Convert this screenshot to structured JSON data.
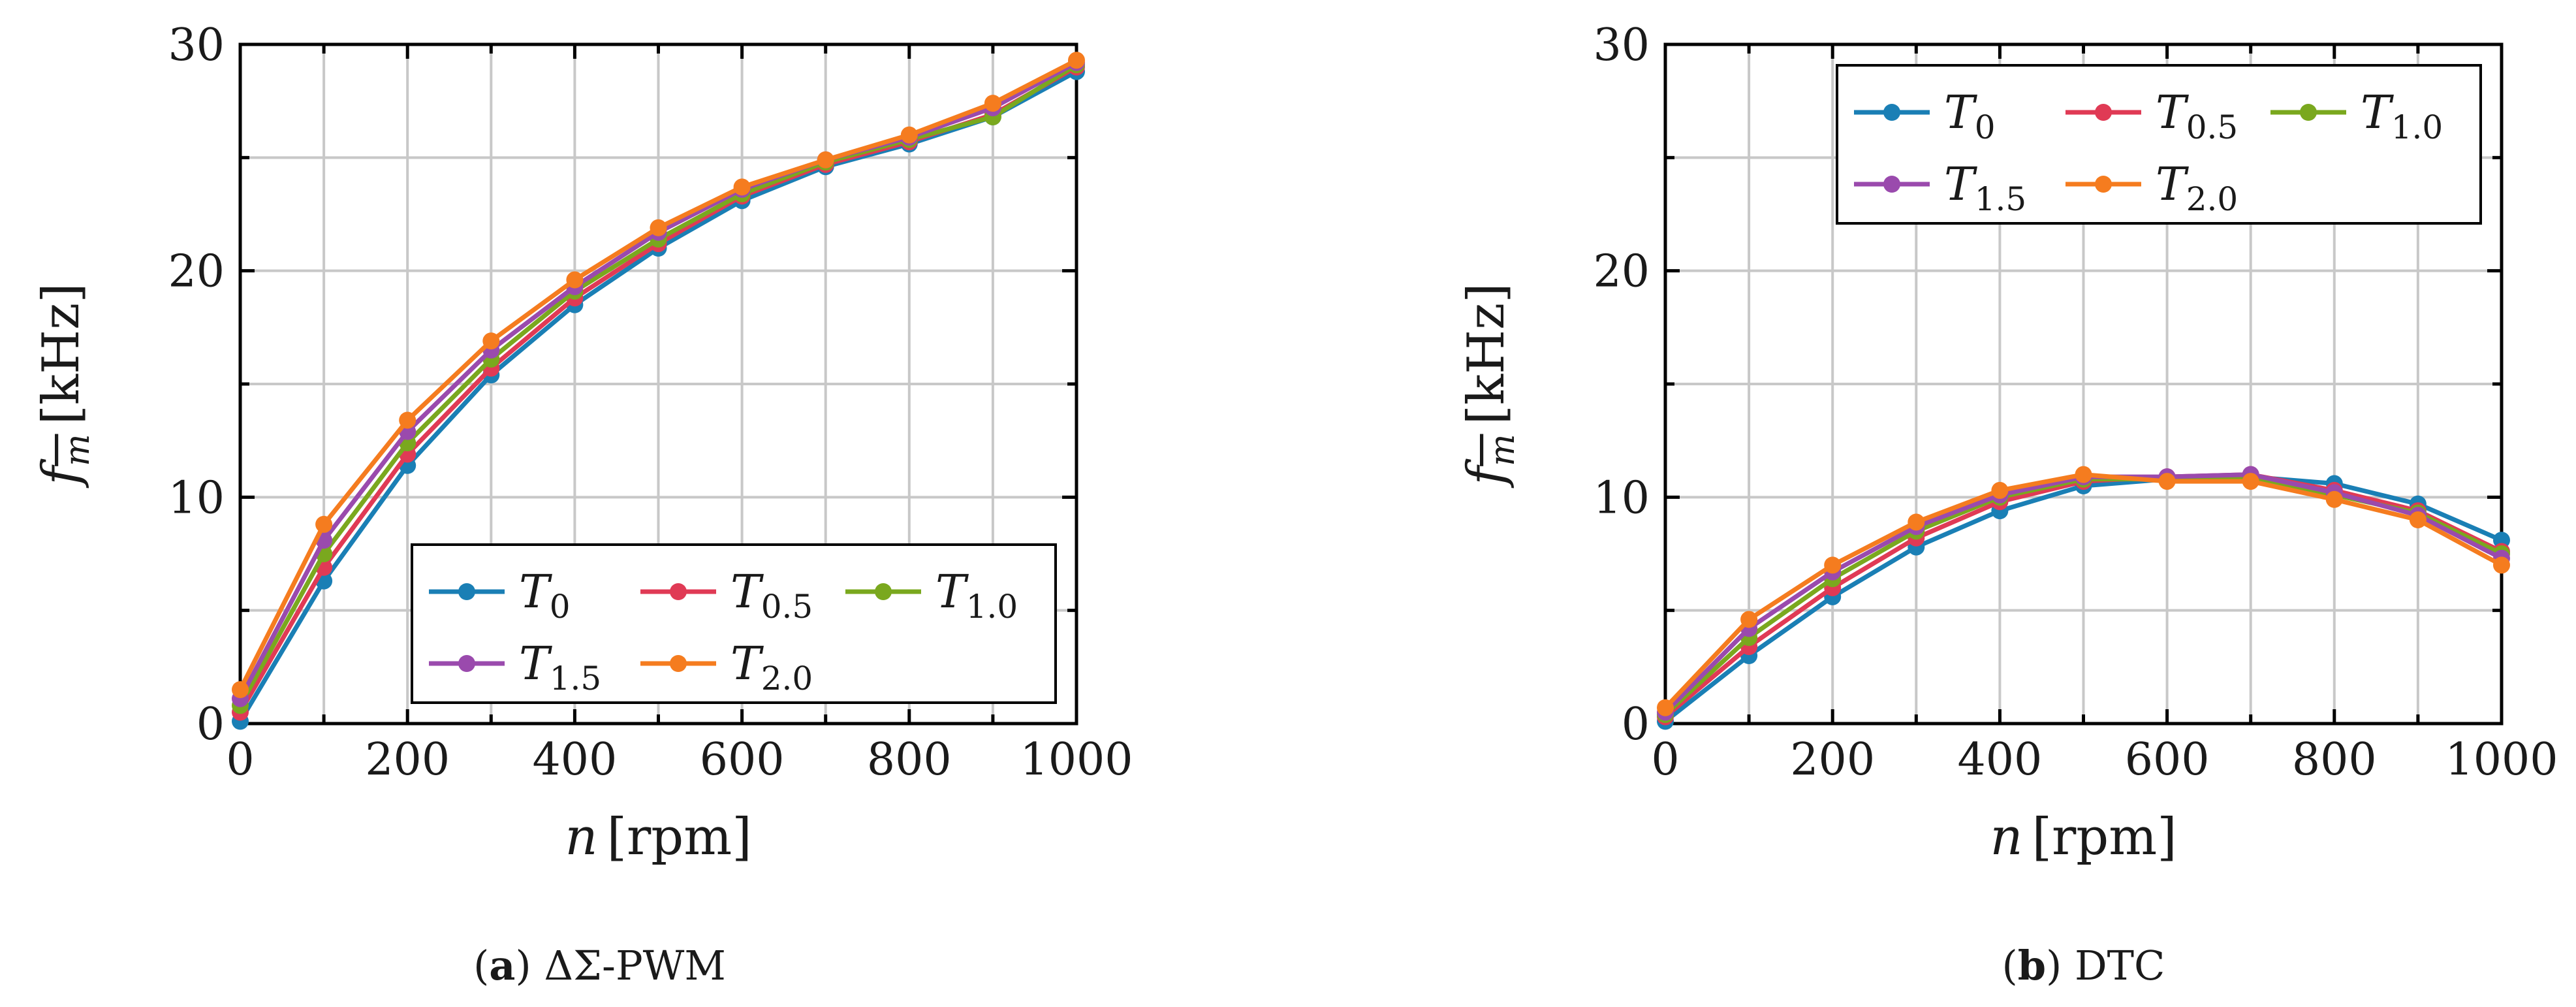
{
  "chart_data": [
    {
      "type": "line",
      "caption": {
        "tag": "(a)",
        "text": " ΔΣ-PWM"
      },
      "xlabel": {
        "symbol": "n",
        "unit": "[rpm]"
      },
      "ylabel": {
        "symbol": "f",
        "sub": "m",
        "unit": "[kHz]"
      },
      "x": [
        0,
        100,
        200,
        300,
        400,
        500,
        600,
        700,
        800,
        900,
        1000
      ],
      "xlim": [
        0,
        1000
      ],
      "ylim": [
        0,
        30
      ],
      "xticks": [
        0,
        200,
        400,
        600,
        800,
        1000
      ],
      "yticks": [
        0,
        10,
        20,
        30
      ],
      "grid": true,
      "legend_position": "bottom-right",
      "series": [
        {
          "name": "T",
          "sub": "0",
          "color": "#1a7fb5",
          "values": [
            0.1,
            6.3,
            11.4,
            15.4,
            18.5,
            21.0,
            23.1,
            24.6,
            25.6,
            26.8,
            28.8
          ]
        },
        {
          "name": "T",
          "sub": "0.5",
          "color": "#e03a55",
          "values": [
            0.5,
            6.9,
            11.9,
            15.7,
            18.8,
            21.2,
            23.3,
            24.7,
            25.7,
            26.9,
            29.0
          ]
        },
        {
          "name": "T",
          "sub": "1.0",
          "color": "#7aa81e",
          "values": [
            0.8,
            7.5,
            12.4,
            16.1,
            19.1,
            21.4,
            23.4,
            24.8,
            25.8,
            26.8,
            29.1
          ]
        },
        {
          "name": "T",
          "sub": "1.5",
          "color": "#9a4aad",
          "values": [
            1.1,
            8.1,
            12.9,
            16.5,
            19.3,
            21.7,
            23.6,
            24.9,
            25.9,
            27.2,
            29.2
          ]
        },
        {
          "name": "T",
          "sub": "2.0",
          "color": "#f57c1f",
          "values": [
            1.5,
            8.8,
            13.4,
            16.9,
            19.6,
            21.9,
            23.7,
            24.9,
            26.0,
            27.4,
            29.3
          ]
        }
      ]
    },
    {
      "type": "line",
      "caption": {
        "tag": "(b)",
        "text": " DTC"
      },
      "xlabel": {
        "symbol": "n",
        "unit": "[rpm]"
      },
      "ylabel": {
        "symbol": "f",
        "sub": "m",
        "unit": "[kHz]"
      },
      "x": [
        0,
        100,
        200,
        300,
        400,
        500,
        600,
        700,
        800,
        900,
        1000
      ],
      "xlim": [
        0,
        1000
      ],
      "ylim": [
        0,
        30
      ],
      "xticks": [
        0,
        200,
        400,
        600,
        800,
        1000
      ],
      "yticks": [
        0,
        10,
        20,
        30
      ],
      "grid": true,
      "legend_position": "top-right",
      "series": [
        {
          "name": "T",
          "sub": "0",
          "color": "#1a7fb5",
          "values": [
            0.1,
            3.0,
            5.6,
            7.8,
            9.4,
            10.5,
            10.8,
            10.9,
            10.6,
            9.7,
            8.1
          ]
        },
        {
          "name": "T",
          "sub": "0.5",
          "color": "#e03a55",
          "values": [
            0.3,
            3.4,
            6.0,
            8.2,
            9.8,
            10.7,
            10.9,
            11.0,
            10.3,
            9.4,
            7.6
          ]
        },
        {
          "name": "T",
          "sub": "1.0",
          "color": "#7aa81e",
          "values": [
            0.4,
            3.8,
            6.4,
            8.5,
            10.0,
            10.8,
            10.8,
            10.9,
            10.1,
            9.3,
            7.5
          ]
        },
        {
          "name": "T",
          "sub": "1.5",
          "color": "#9a4aad",
          "values": [
            0.5,
            4.2,
            6.7,
            8.7,
            10.1,
            10.9,
            10.9,
            11.0,
            10.2,
            9.2,
            7.3
          ]
        },
        {
          "name": "T",
          "sub": "2.0",
          "color": "#f57c1f",
          "values": [
            0.7,
            4.6,
            7.0,
            8.9,
            10.3,
            11.0,
            10.7,
            10.7,
            9.9,
            9.0,
            7.0
          ]
        }
      ]
    }
  ]
}
